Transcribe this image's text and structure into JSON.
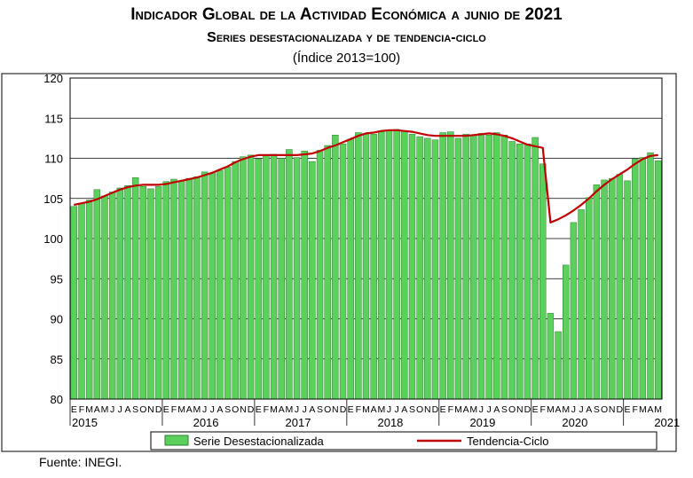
{
  "title": "Indicador Global de la Actividad Económica a junio de 2021",
  "subtitle": "Series desestacionalizada y de tendencia-ciclo",
  "unit_note": "(Índice 2013=100)",
  "source": "Fuente: INEGI.",
  "colors": {
    "bar_fill": "#5cd05c",
    "bar_stroke": "#2e7d2e",
    "trend": "#c00000",
    "grid": "#000000"
  },
  "chart_data": {
    "type": "bar",
    "ylim": [
      80,
      120
    ],
    "yticks": [
      80,
      85,
      90,
      95,
      100,
      105,
      110,
      115,
      120
    ],
    "month_letters": [
      "E",
      "F",
      "M",
      "A",
      "M",
      "J",
      "J",
      "A",
      "S",
      "O",
      "N",
      "D"
    ],
    "start": "2015-01",
    "years": [
      "2015",
      "2016",
      "2017",
      "2018",
      "2019",
      "2020",
      "2021"
    ],
    "legend": {
      "position": "bottom",
      "bar_label": "Serie Desestacionalizada",
      "line_label": "Tendencia-Ciclo"
    },
    "series": [
      {
        "name": "Serie Desestacionalizada",
        "type": "bar",
        "values": [
          104.0,
          104.4,
          104.8,
          106.1,
          105.3,
          105.8,
          106.3,
          106.6,
          107.6,
          106.5,
          106.2,
          106.5,
          107.1,
          107.4,
          107.2,
          107.5,
          107.7,
          108.3,
          108.2,
          108.5,
          108.9,
          109.6,
          110.2,
          110.4,
          109.9,
          110.3,
          110.5,
          110.0,
          111.1,
          110.1,
          110.9,
          109.6,
          111.0,
          111.6,
          112.9,
          111.8,
          112.4,
          113.2,
          113.1,
          113.0,
          113.3,
          113.5,
          113.6,
          113.4,
          113.0,
          112.7,
          112.5,
          112.3,
          113.2,
          113.3,
          112.5,
          113.0,
          112.8,
          113.1,
          112.9,
          113.2,
          112.9,
          112.1,
          111.8,
          111.8,
          112.6,
          109.3,
          90.7,
          88.4,
          96.7,
          102.0,
          103.6,
          105.1,
          106.7,
          107.3,
          107.5,
          108.0,
          107.2,
          109.9,
          110.1,
          110.7,
          109.7
        ]
      },
      {
        "name": "Tendencia-Ciclo",
        "type": "line",
        "values": [
          104.2,
          104.4,
          104.6,
          104.9,
          105.3,
          105.7,
          106.1,
          106.4,
          106.6,
          106.7,
          106.7,
          106.7,
          106.8,
          107.0,
          107.2,
          107.4,
          107.6,
          107.9,
          108.2,
          108.6,
          109.0,
          109.5,
          109.9,
          110.2,
          110.4,
          110.4,
          110.4,
          110.4,
          110.4,
          110.4,
          110.5,
          110.6,
          110.9,
          111.3,
          111.6,
          112.0,
          112.4,
          112.8,
          113.1,
          113.2,
          113.4,
          113.5,
          113.5,
          113.4,
          113.3,
          113.1,
          112.9,
          112.8,
          112.8,
          112.8,
          112.8,
          112.8,
          112.9,
          113.0,
          113.1,
          113.0,
          112.8,
          112.5,
          112.1,
          111.7,
          111.5,
          111.3,
          102.0,
          102.4,
          102.9,
          103.5,
          104.2,
          105.0,
          105.9,
          106.7,
          107.4,
          108.0,
          108.6,
          109.3,
          109.9,
          110.3,
          110.4
        ]
      }
    ]
  }
}
